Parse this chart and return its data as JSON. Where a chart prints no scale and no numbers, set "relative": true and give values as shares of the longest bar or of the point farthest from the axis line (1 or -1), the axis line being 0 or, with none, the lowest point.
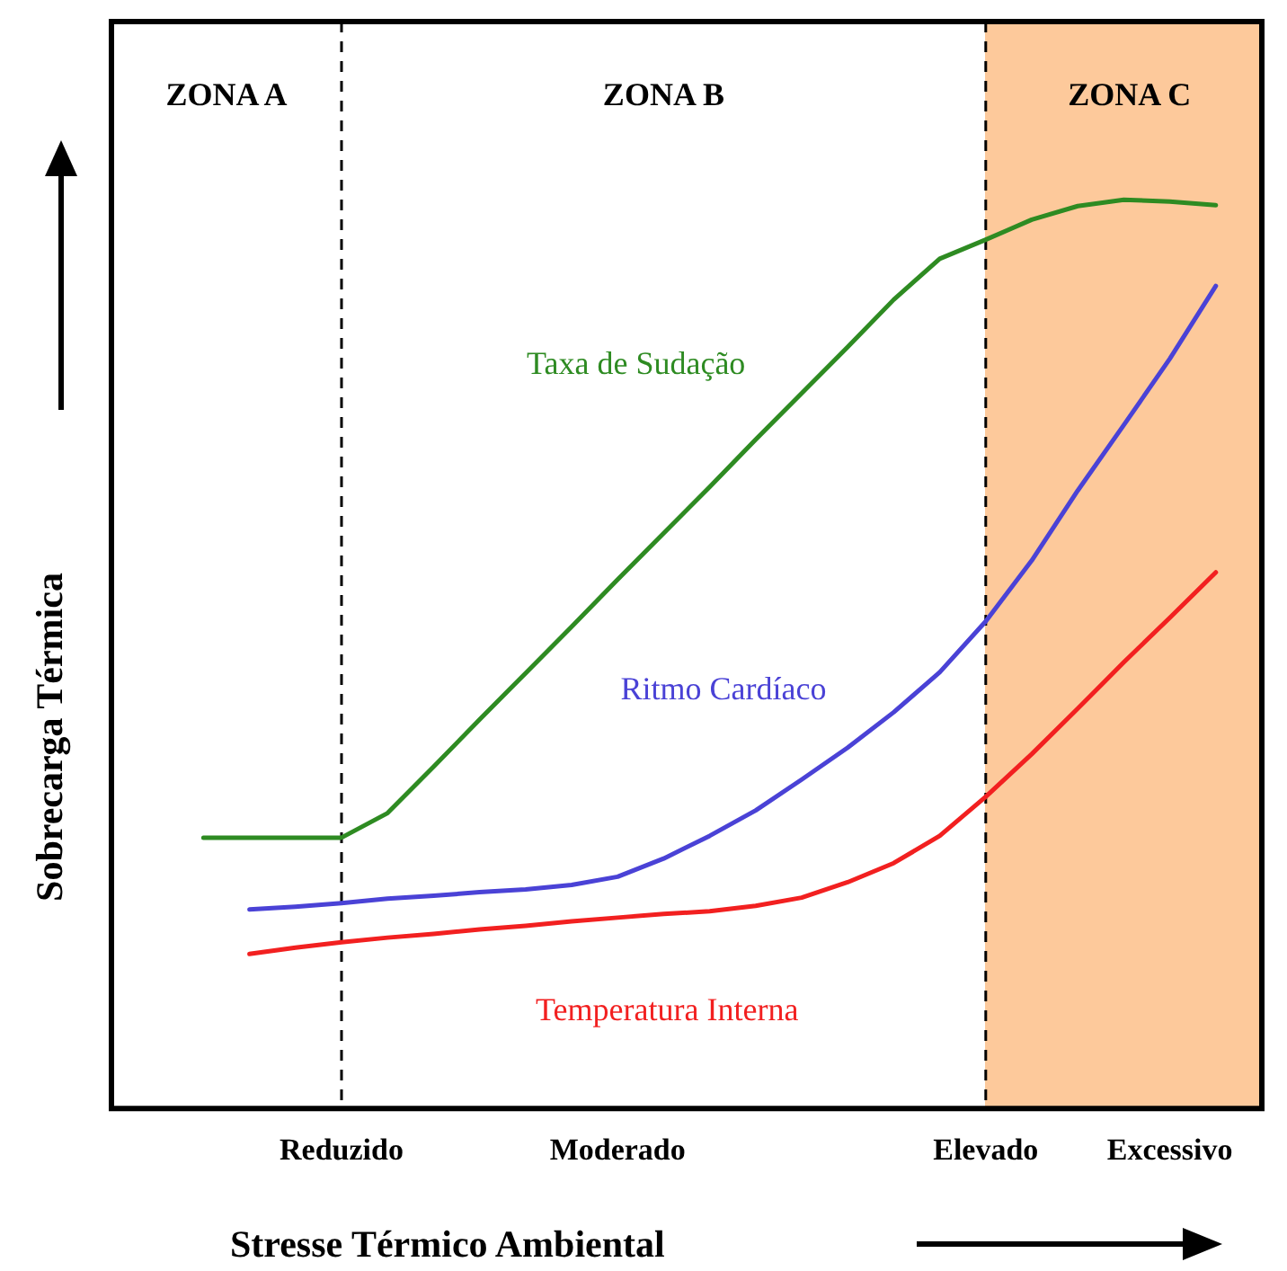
{
  "chart_data": {
    "type": "line",
    "relative": true,
    "xlabel": "Stresse Térmico Ambiental",
    "ylabel": "Sobrecarga Térmica",
    "categories": [
      null,
      null,
      null,
      null,
      null,
      "Reduzido",
      null,
      null,
      null,
      null,
      null,
      "Moderado",
      null,
      null,
      null,
      null,
      null,
      null,
      null,
      "Elevado",
      null,
      null,
      null,
      "Excessivo",
      null,
      null
    ],
    "series": [
      {
        "name": "Taxa de Sudação",
        "color": "#2e8b22",
        "values": [
          null,
          null,
          0.298,
          0.298,
          0.298,
          0.298,
          0.325,
          0.376,
          0.428,
          0.479,
          0.53,
          0.582,
          0.633,
          0.684,
          0.736,
          0.787,
          0.838,
          0.89,
          0.935,
          0.956,
          0.978,
          0.993,
          1.0,
          0.998,
          0.994,
          null
        ]
      },
      {
        "name": "Ritmo Cardíaco",
        "color": "#4a42d6",
        "values": [
          null,
          null,
          null,
          0.219,
          0.222,
          0.226,
          0.231,
          0.234,
          0.238,
          0.241,
          0.246,
          0.255,
          0.275,
          0.3,
          0.328,
          0.362,
          0.397,
          0.436,
          0.48,
          0.536,
          0.603,
          0.68,
          0.752,
          0.825,
          0.905,
          null
        ]
      },
      {
        "name": "Temperatura Interna",
        "color": "#f22020",
        "values": [
          null,
          null,
          null,
          0.17,
          0.177,
          0.183,
          0.188,
          0.192,
          0.197,
          0.201,
          0.206,
          0.21,
          0.214,
          0.217,
          0.223,
          0.232,
          0.249,
          0.27,
          0.3,
          0.343,
          0.39,
          0.44,
          0.491,
          0.54,
          0.59,
          null
        ]
      }
    ],
    "annotations": [
      "ZONA A",
      "ZONA B",
      "ZONA C"
    ],
    "ref_lines": [
      {
        "axis": "x",
        "value": "Reduzido",
        "line_style": "dashed"
      },
      {
        "axis": "x",
        "value": "Elevado",
        "line_style": "dashed"
      }
    ],
    "legend": false,
    "marker": "none",
    "line_style": "solid"
  }
}
